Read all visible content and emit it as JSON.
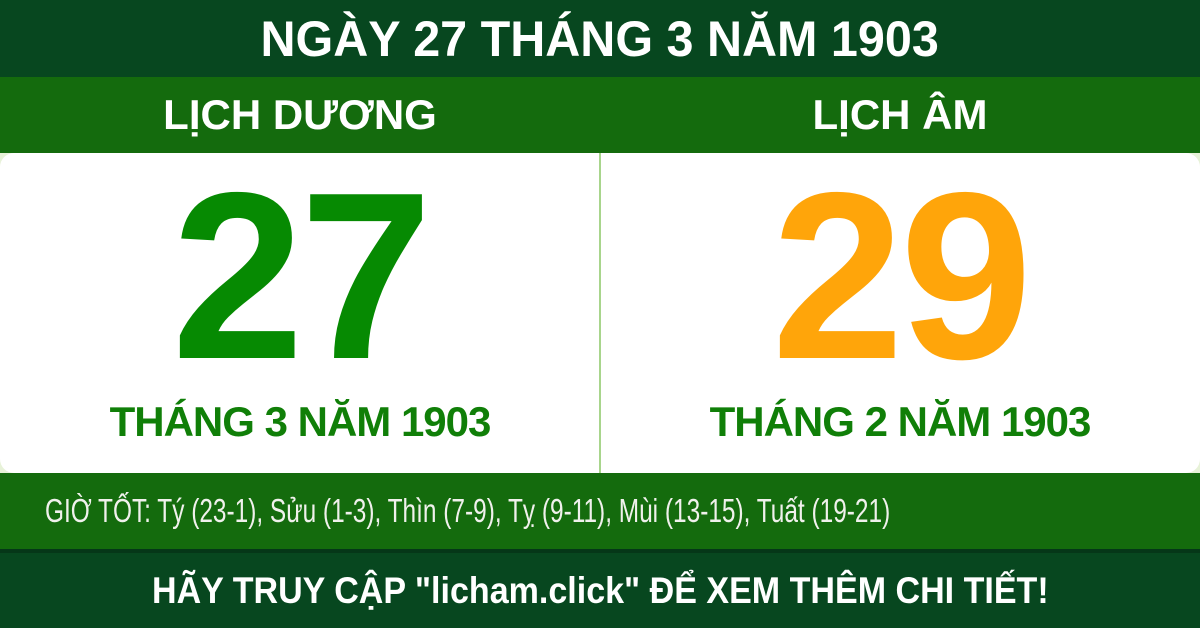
{
  "header": {
    "title": "NGÀY 27 THÁNG 3 NĂM 1903"
  },
  "calendars": {
    "solar": {
      "label": "LỊCH DƯƠNG",
      "day": "27",
      "month_year": "THÁNG 3 NĂM 1903"
    },
    "lunar": {
      "label": "LỊCH ÂM",
      "day": "29",
      "month_year": "THÁNG 2 NĂM 1903"
    }
  },
  "good_hours": {
    "text": "GIỜ TỐT: Tý (23-1), Sửu (1-3), Thìn (7-9), Tỵ (9-11), Mùi (13-15), Tuất (19-21)"
  },
  "footer": {
    "text": "HÃY TRUY CẬP \"licham.click\" ĐỂ XEM THÊM CHI TIẾT!"
  },
  "colors": {
    "dark_green": "#07471f",
    "bar_green": "#146b0d",
    "solar_green": "#068a02",
    "month_green": "#107f08",
    "lunar_orange": "#ffa50a",
    "divider_green": "#a8d58c",
    "pale_edge": "#e7f2d8",
    "hours_text": "#f0f1ec"
  }
}
